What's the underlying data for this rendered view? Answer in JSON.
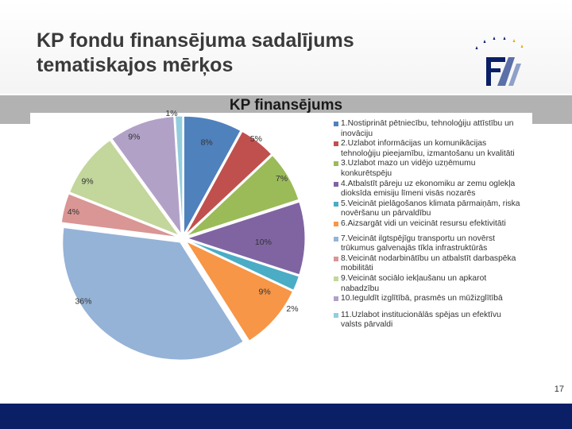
{
  "slide": {
    "title_line1": "KP fondu finansējuma sadalījums",
    "title_line2": "tematiskajos mērķos",
    "page_number": "17"
  },
  "colors": {
    "bottom_bar": "#0a1f66",
    "chart_band": "#b2b2b2"
  },
  "chart_data": {
    "type": "pie",
    "title": "KP finansējums",
    "legend_position": "right",
    "series": [
      {
        "name": "1.Nostiprināt pētniecību, tehnoloģiju attīstību un inovāciju",
        "value": 8,
        "label": "8%",
        "color": "#4f81bd"
      },
      {
        "name": "2.Uzlabot informācijas un komunikācijas tehnoloģiju pieejamību, izmantošanu un kvalitāti",
        "value": 5,
        "label": "5%",
        "color": "#c0504d"
      },
      {
        "name": "3.Uzlabot mazo un vidējo uzņēmumu konkurētspēju",
        "value": 7,
        "label": "7%",
        "color": "#9bbb59"
      },
      {
        "name": "4.Atbalstīt pāreju uz ekonomiku ar zemu oglekļa dioksīda emisiju līmeni visās nozarēs",
        "value": 10,
        "label": "10%",
        "color": "#8064a2"
      },
      {
        "name": "5.Veicināt pielāgošanos klimata pārmaiņām, riska novēršanu un pārvaldību",
        "value": 2,
        "label": "2%",
        "color": "#4bacc6"
      },
      {
        "name": "6.Aizsargāt vidi un veicināt resursu efektivitāti",
        "value": 9,
        "label": "9%",
        "color": "#f79646"
      },
      {
        "name": "7.Veicināt ilgtspējīgu transportu un novērst trūkumus galvenajās tīkla infrastruktūrās",
        "value": 36,
        "label": "36%",
        "color": "#95b3d7"
      },
      {
        "name": "8.Veicināt nodarbinātību un atbalstīt darbaspēka mobilitāti",
        "value": 4,
        "label": "4%",
        "color": "#d99694"
      },
      {
        "name": "9.Veicināt sociālo iekļaušanu un apkarot nabadzību",
        "value": 9,
        "label": "9%",
        "color": "#c3d69b"
      },
      {
        "name": "10.Ieguldīt izglītībā, prasmēs un mūžizglītībā",
        "value": 9,
        "label": "9%",
        "color": "#b2a1c7"
      },
      {
        "name": "11.Uzlabot institucionālās spējas un efektīvu valsts pārvaldi",
        "value": 1,
        "label": "1%",
        "color": "#93cddd"
      }
    ]
  }
}
